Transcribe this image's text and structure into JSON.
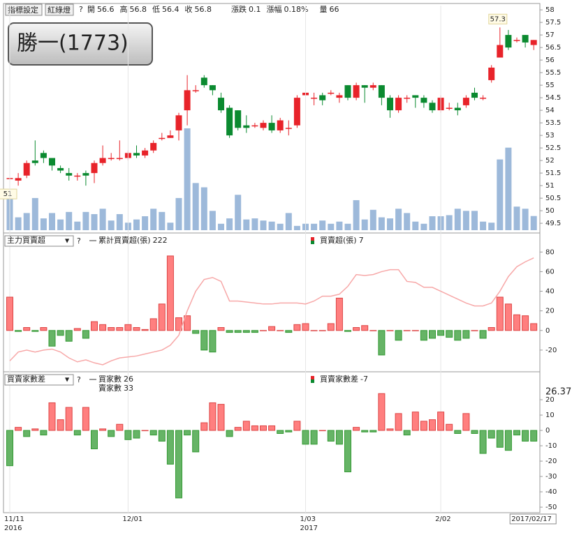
{
  "header": {
    "buttons": [
      "指標設定",
      "紅綠燈"
    ],
    "help": "?",
    "quote": [
      {
        "label": "開",
        "value": "56.6"
      },
      {
        "label": "高",
        "value": "56.8"
      },
      {
        "label": "低",
        "value": "56.4"
      },
      {
        "label": "收",
        "value": "56.8"
      }
    ],
    "change": [
      {
        "label": "漲跌",
        "value": "0.1"
      },
      {
        "label": "漲幅",
        "value": "0.18%"
      }
    ],
    "volume": {
      "label": "量",
      "value": "66"
    }
  },
  "title": "勝一(1773)",
  "panels": [
    {
      "selector": "主力買賣超",
      "legend": [
        {
          "label": "累計買賣超(張)",
          "value": "222"
        },
        {
          "label": "買賣超(張)",
          "value": "7"
        }
      ]
    },
    {
      "selector": "買賣家數差",
      "legend": [
        {
          "label": "買家數",
          "value": "26"
        },
        {
          "label": "賣家數",
          "value": "33"
        },
        {
          "label": "買賣家數差",
          "value": "-7"
        }
      ],
      "cursor_value": "26.37"
    }
  ],
  "chart_data": [
    {
      "type": "candlestick",
      "up_color": "#e8232a",
      "down_color": "#0b8a30",
      "volume_color": "#9db9da",
      "categories": [
        "11/11",
        null,
        null,
        null,
        null,
        null,
        null,
        null,
        null,
        null,
        null,
        null,
        null,
        null,
        "12/01",
        null,
        null,
        null,
        null,
        null,
        null,
        null,
        null,
        null,
        null,
        null,
        null,
        null,
        null,
        null,
        null,
        null,
        null,
        null,
        null,
        "1/03",
        null,
        null,
        null,
        null,
        null,
        null,
        null,
        null,
        null,
        null,
        null,
        null,
        null,
        null,
        null,
        "2/02",
        null,
        null,
        null,
        null,
        null,
        null,
        null,
        null,
        null,
        null,
        "2017/02/17"
      ],
      "years": [
        "2016",
        null,
        null,
        null,
        null,
        null,
        null,
        null,
        null,
        null,
        null,
        null,
        null,
        null,
        null,
        null,
        null,
        null,
        null,
        null,
        null,
        null,
        null,
        null,
        null,
        null,
        null,
        null,
        null,
        null,
        null,
        null,
        null,
        null,
        null,
        "2017",
        null,
        null,
        null,
        null,
        null,
        null,
        null,
        null,
        null,
        null,
        null,
        null,
        null,
        null,
        null,
        null,
        null,
        null,
        null,
        null,
        null,
        null,
        null,
        null,
        null,
        null,
        null
      ],
      "open_close_high_low": [
        [
          51.3,
          51.3,
          51.6,
          51.0
        ],
        [
          51.2,
          51.3,
          51.5,
          51.0
        ],
        [
          51.4,
          51.9,
          52.0,
          51.3
        ],
        [
          52.0,
          51.9,
          52.8,
          51.8
        ],
        [
          52.3,
          52.1,
          52.4,
          51.9
        ],
        [
          52.1,
          51.8,
          52.1,
          51.6
        ],
        [
          51.7,
          51.6,
          51.8,
          51.5
        ],
        [
          51.5,
          51.4,
          51.7,
          51.2
        ],
        [
          51.4,
          51.4,
          51.5,
          51.2
        ],
        [
          51.5,
          51.4,
          51.6,
          51.0
        ],
        [
          51.5,
          51.9,
          52.0,
          51.1
        ],
        [
          51.9,
          52.1,
          52.6,
          51.8
        ],
        [
          52.1,
          52.1,
          52.3,
          52.0
        ],
        [
          52.1,
          52.1,
          52.8,
          52.0
        ],
        [
          52.1,
          52.3,
          52.4,
          52.0
        ],
        [
          52.3,
          52.2,
          52.6,
          52.1
        ],
        [
          52.2,
          52.4,
          52.5,
          52.1
        ],
        [
          52.4,
          52.7,
          52.8,
          52.3
        ],
        [
          52.9,
          52.9,
          53.1,
          52.8
        ],
        [
          52.9,
          53.0,
          53.2,
          52.9
        ],
        [
          53.2,
          53.8,
          53.9,
          52.8
        ],
        [
          54.0,
          54.8,
          55.4,
          53.4
        ],
        [
          54.8,
          54.8,
          55.0,
          54.7
        ],
        [
          55.3,
          55.0,
          55.4,
          54.9
        ],
        [
          55.0,
          54.8,
          55.0,
          54.6
        ],
        [
          54.5,
          54.0,
          54.7,
          53.9
        ],
        [
          54.1,
          53.0,
          54.2,
          52.9
        ],
        [
          54.0,
          53.3,
          54.0,
          53.2
        ],
        [
          53.4,
          53.3,
          53.8,
          53.1
        ],
        [
          53.4,
          53.4,
          53.5,
          53.3
        ],
        [
          53.3,
          53.5,
          53.6,
          53.2
        ],
        [
          53.5,
          53.2,
          53.8,
          53.1
        ],
        [
          53.2,
          53.6,
          53.7,
          53.1
        ],
        [
          53.3,
          53.3,
          53.6,
          53.0
        ],
        [
          53.4,
          54.5,
          54.6,
          53.3
        ],
        [
          54.6,
          54.7,
          54.8,
          54.5
        ],
        [
          54.5,
          54.5,
          54.7,
          54.2
        ],
        [
          54.6,
          54.4,
          54.7,
          54.2
        ],
        [
          54.7,
          54.7,
          54.8,
          54.6
        ],
        [
          54.5,
          54.6,
          54.7,
          54.3
        ],
        [
          55.0,
          54.5,
          55.0,
          54.4
        ],
        [
          54.5,
          55.0,
          55.1,
          54.4
        ],
        [
          55.0,
          54.9,
          55.0,
          54.3
        ],
        [
          54.9,
          55.0,
          55.1,
          54.8
        ],
        [
          55.0,
          54.5,
          55.0,
          54.2
        ],
        [
          54.5,
          54.0,
          54.6,
          53.7
        ],
        [
          54.0,
          54.5,
          54.6,
          53.9
        ],
        [
          54.5,
          54.5,
          54.6,
          54.3
        ],
        [
          54.6,
          54.5,
          54.6,
          54.1
        ],
        [
          54.5,
          54.3,
          54.6,
          54.1
        ],
        [
          54.3,
          54.0,
          54.4,
          53.9
        ],
        [
          54.0,
          54.5,
          54.6,
          53.9
        ],
        [
          54.1,
          54.1,
          54.3,
          54.0
        ],
        [
          54.1,
          54.0,
          54.3,
          53.8
        ],
        [
          54.2,
          54.5,
          54.6,
          54.1
        ],
        [
          54.7,
          54.5,
          54.9,
          54.4
        ],
        [
          54.5,
          54.5,
          54.6,
          54.4
        ],
        [
          55.2,
          55.7,
          55.8,
          55.1
        ],
        [
          56.1,
          56.6,
          57.3,
          56.1
        ],
        [
          57.0,
          56.5,
          57.2,
          56.4
        ],
        [
          56.8,
          56.8,
          56.9,
          56.7
        ],
        [
          57.0,
          56.7,
          57.0,
          56.5
        ],
        [
          56.6,
          56.8,
          56.8,
          56.4
        ]
      ],
      "volume": [
        165,
        60,
        80,
        150,
        55,
        80,
        50,
        85,
        40,
        85,
        75,
        100,
        45,
        75,
        35,
        50,
        65,
        100,
        85,
        35,
        150,
        475,
        220,
        200,
        90,
        30,
        55,
        165,
        50,
        55,
        45,
        40,
        30,
        80,
        20,
        30,
        30,
        45,
        30,
        40,
        30,
        140,
        50,
        95,
        60,
        55,
        100,
        80,
        40,
        30,
        65,
        65,
        70,
        100,
        90,
        90,
        40,
        35,
        330,
        385,
        110,
        100,
        66
      ],
      "annotations": [
        {
          "label": "57.3",
          "value": 57.3
        },
        {
          "label": "51",
          "value": 51
        }
      ],
      "ylim": [
        49.17,
        58.17
      ],
      "yticks": [
        49.5,
        50,
        50.5,
        51,
        51.5,
        52,
        52.5,
        53,
        53.5,
        54,
        54.5,
        55,
        55.5,
        56,
        56.5,
        57,
        57.5,
        58
      ]
    },
    {
      "type": "bar",
      "up_color": "#ff7f7f",
      "down_color": "#66b466",
      "line_color": "#f7a8a8",
      "values": [
        34,
        -1,
        3,
        -1,
        3,
        -16,
        -5,
        -11,
        2,
        -8,
        9,
        6,
        3,
        3,
        6,
        3,
        1,
        12,
        27,
        76,
        13,
        15,
        -3,
        -20,
        -22,
        3,
        -2,
        -2,
        -2,
        -2,
        0,
        4,
        0,
        -2,
        6,
        7,
        0,
        0,
        7,
        33,
        -1,
        3,
        5,
        0,
        -25,
        0,
        -10,
        0,
        0,
        -10,
        -8,
        -5,
        -7,
        -10,
        -8,
        0,
        -8,
        3,
        34,
        27,
        16,
        15,
        7
      ],
      "line": [
        -31,
        -22,
        -20,
        -22,
        -20,
        -19,
        -22,
        -28,
        -32,
        -30,
        -33,
        -35,
        -31,
        -28,
        -27,
        -26,
        -24,
        -22,
        -20,
        -15,
        -5,
        20,
        40,
        52,
        54,
        50,
        30,
        30,
        29,
        28,
        27,
        27,
        28,
        28,
        28,
        27,
        30,
        35,
        35,
        37,
        45,
        57,
        56,
        57,
        60,
        62,
        62,
        50,
        49,
        44,
        44,
        40,
        36,
        32,
        28,
        25,
        25,
        28,
        40,
        55,
        65,
        70,
        74
      ],
      "ylim": [
        -40,
        98
      ],
      "yticks": [
        -20,
        0,
        20,
        40,
        60,
        80
      ]
    },
    {
      "type": "bar",
      "up_color": "#ff7f7f",
      "down_color": "#66b466",
      "values": [
        -23,
        2,
        -4,
        1,
        -3,
        18,
        7,
        15,
        -3,
        15,
        -12,
        1,
        -4,
        4,
        -6,
        -5,
        0,
        -3,
        -7,
        -22,
        -44,
        -3,
        -14,
        5,
        18,
        17,
        -4,
        2,
        6,
        3,
        3,
        3,
        -2,
        -1,
        6,
        -9,
        -9,
        0,
        -7,
        -9,
        -27,
        2,
        -1,
        -1,
        24,
        1,
        11,
        -3,
        12,
        6,
        7,
        12,
        4,
        -2,
        11,
        -2,
        -15,
        -5,
        -11,
        -13,
        -3,
        -7,
        -7
      ],
      "ylim": [
        -53.6,
        37.3
      ],
      "yticks": [
        -50,
        -40,
        -30,
        -20,
        -10,
        0,
        10,
        20
      ]
    }
  ]
}
